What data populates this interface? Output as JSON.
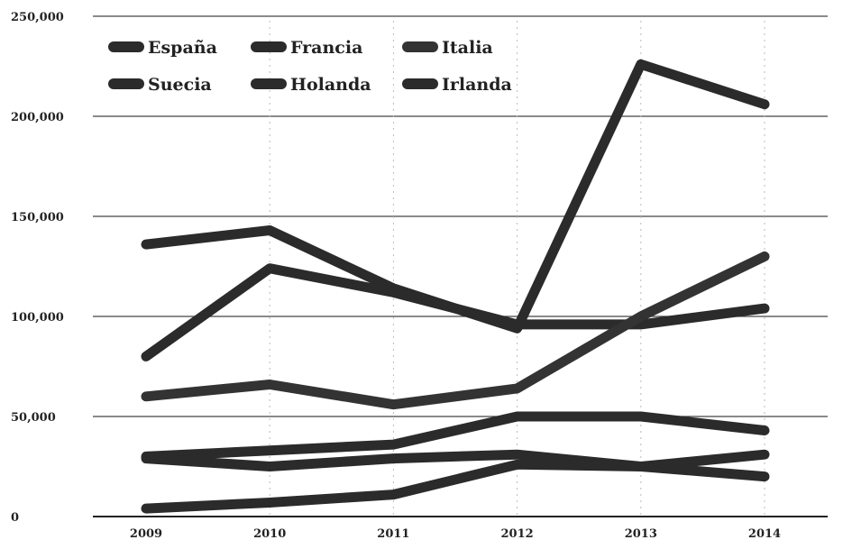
{
  "chart_data": {
    "type": "line",
    "title": "",
    "xlabel": "",
    "ylabel": "",
    "x": [
      "2009",
      "2010",
      "2011",
      "2012",
      "2013",
      "2014"
    ],
    "ylim": [
      0,
      250000
    ],
    "yticks": [
      0,
      50000,
      100000,
      150000,
      200000,
      250000
    ],
    "ytick_labels": [
      "0",
      "50,000",
      "100,000",
      "150,000",
      "200,000",
      "250,000"
    ],
    "grid": "horizontal",
    "legend_position": "top-left",
    "series": [
      {
        "name": "España",
        "values": [
          136000,
          143000,
          114000,
          94000,
          226000,
          206000
        ],
        "color": "#2b2b2b"
      },
      {
        "name": "Francia",
        "values": [
          80000,
          124000,
          112000,
          96000,
          96000,
          104000
        ],
        "color": "#2b2b2b"
      },
      {
        "name": "Italia",
        "values": [
          60000,
          66000,
          56000,
          64000,
          100000,
          130000
        ],
        "color": "#333333"
      },
      {
        "name": "Suecia",
        "values": [
          30000,
          33000,
          36000,
          50000,
          50000,
          43000
        ],
        "color": "#2b2b2b"
      },
      {
        "name": "Holanda",
        "values": [
          29000,
          25000,
          29000,
          31000,
          25000,
          20000
        ],
        "color": "#2b2b2b"
      },
      {
        "name": "Irlanda",
        "values": [
          4000,
          7000,
          11000,
          26000,
          25000,
          31000
        ],
        "color": "#2b2b2b"
      }
    ]
  }
}
